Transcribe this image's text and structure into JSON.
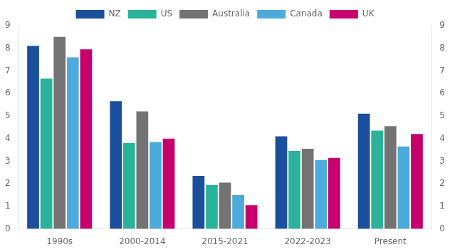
{
  "chart_data": {
    "type": "bar",
    "categories": [
      "1990s",
      "2000-2014",
      "2015-2021",
      "2022-2023",
      "Present"
    ],
    "series": [
      {
        "name": "NZ",
        "color": "#1a4f9c",
        "values": [
          8.1,
          5.65,
          2.35,
          4.1,
          5.1
        ]
      },
      {
        "name": "US",
        "color": "#2ab39a",
        "values": [
          6.65,
          3.8,
          1.95,
          3.45,
          4.35
        ]
      },
      {
        "name": "Australia",
        "color": "#737373",
        "values": [
          8.5,
          5.2,
          2.05,
          3.55,
          4.55
        ]
      },
      {
        "name": "Canada",
        "color": "#4daadc",
        "values": [
          7.6,
          3.85,
          1.5,
          3.05,
          3.65
        ]
      },
      {
        "name": "UK",
        "color": "#c8006e",
        "values": [
          7.95,
          4.0,
          1.05,
          3.15,
          4.2
        ]
      }
    ],
    "ylim": [
      0,
      9
    ],
    "yticks": [
      0,
      1,
      2,
      3,
      4,
      5,
      6,
      7,
      8,
      9
    ],
    "y2lim": [
      0,
      9
    ],
    "y2ticks": [
      0,
      1,
      2,
      3,
      4,
      5,
      6,
      7,
      8,
      9
    ],
    "grid": false,
    "legend": "top"
  }
}
